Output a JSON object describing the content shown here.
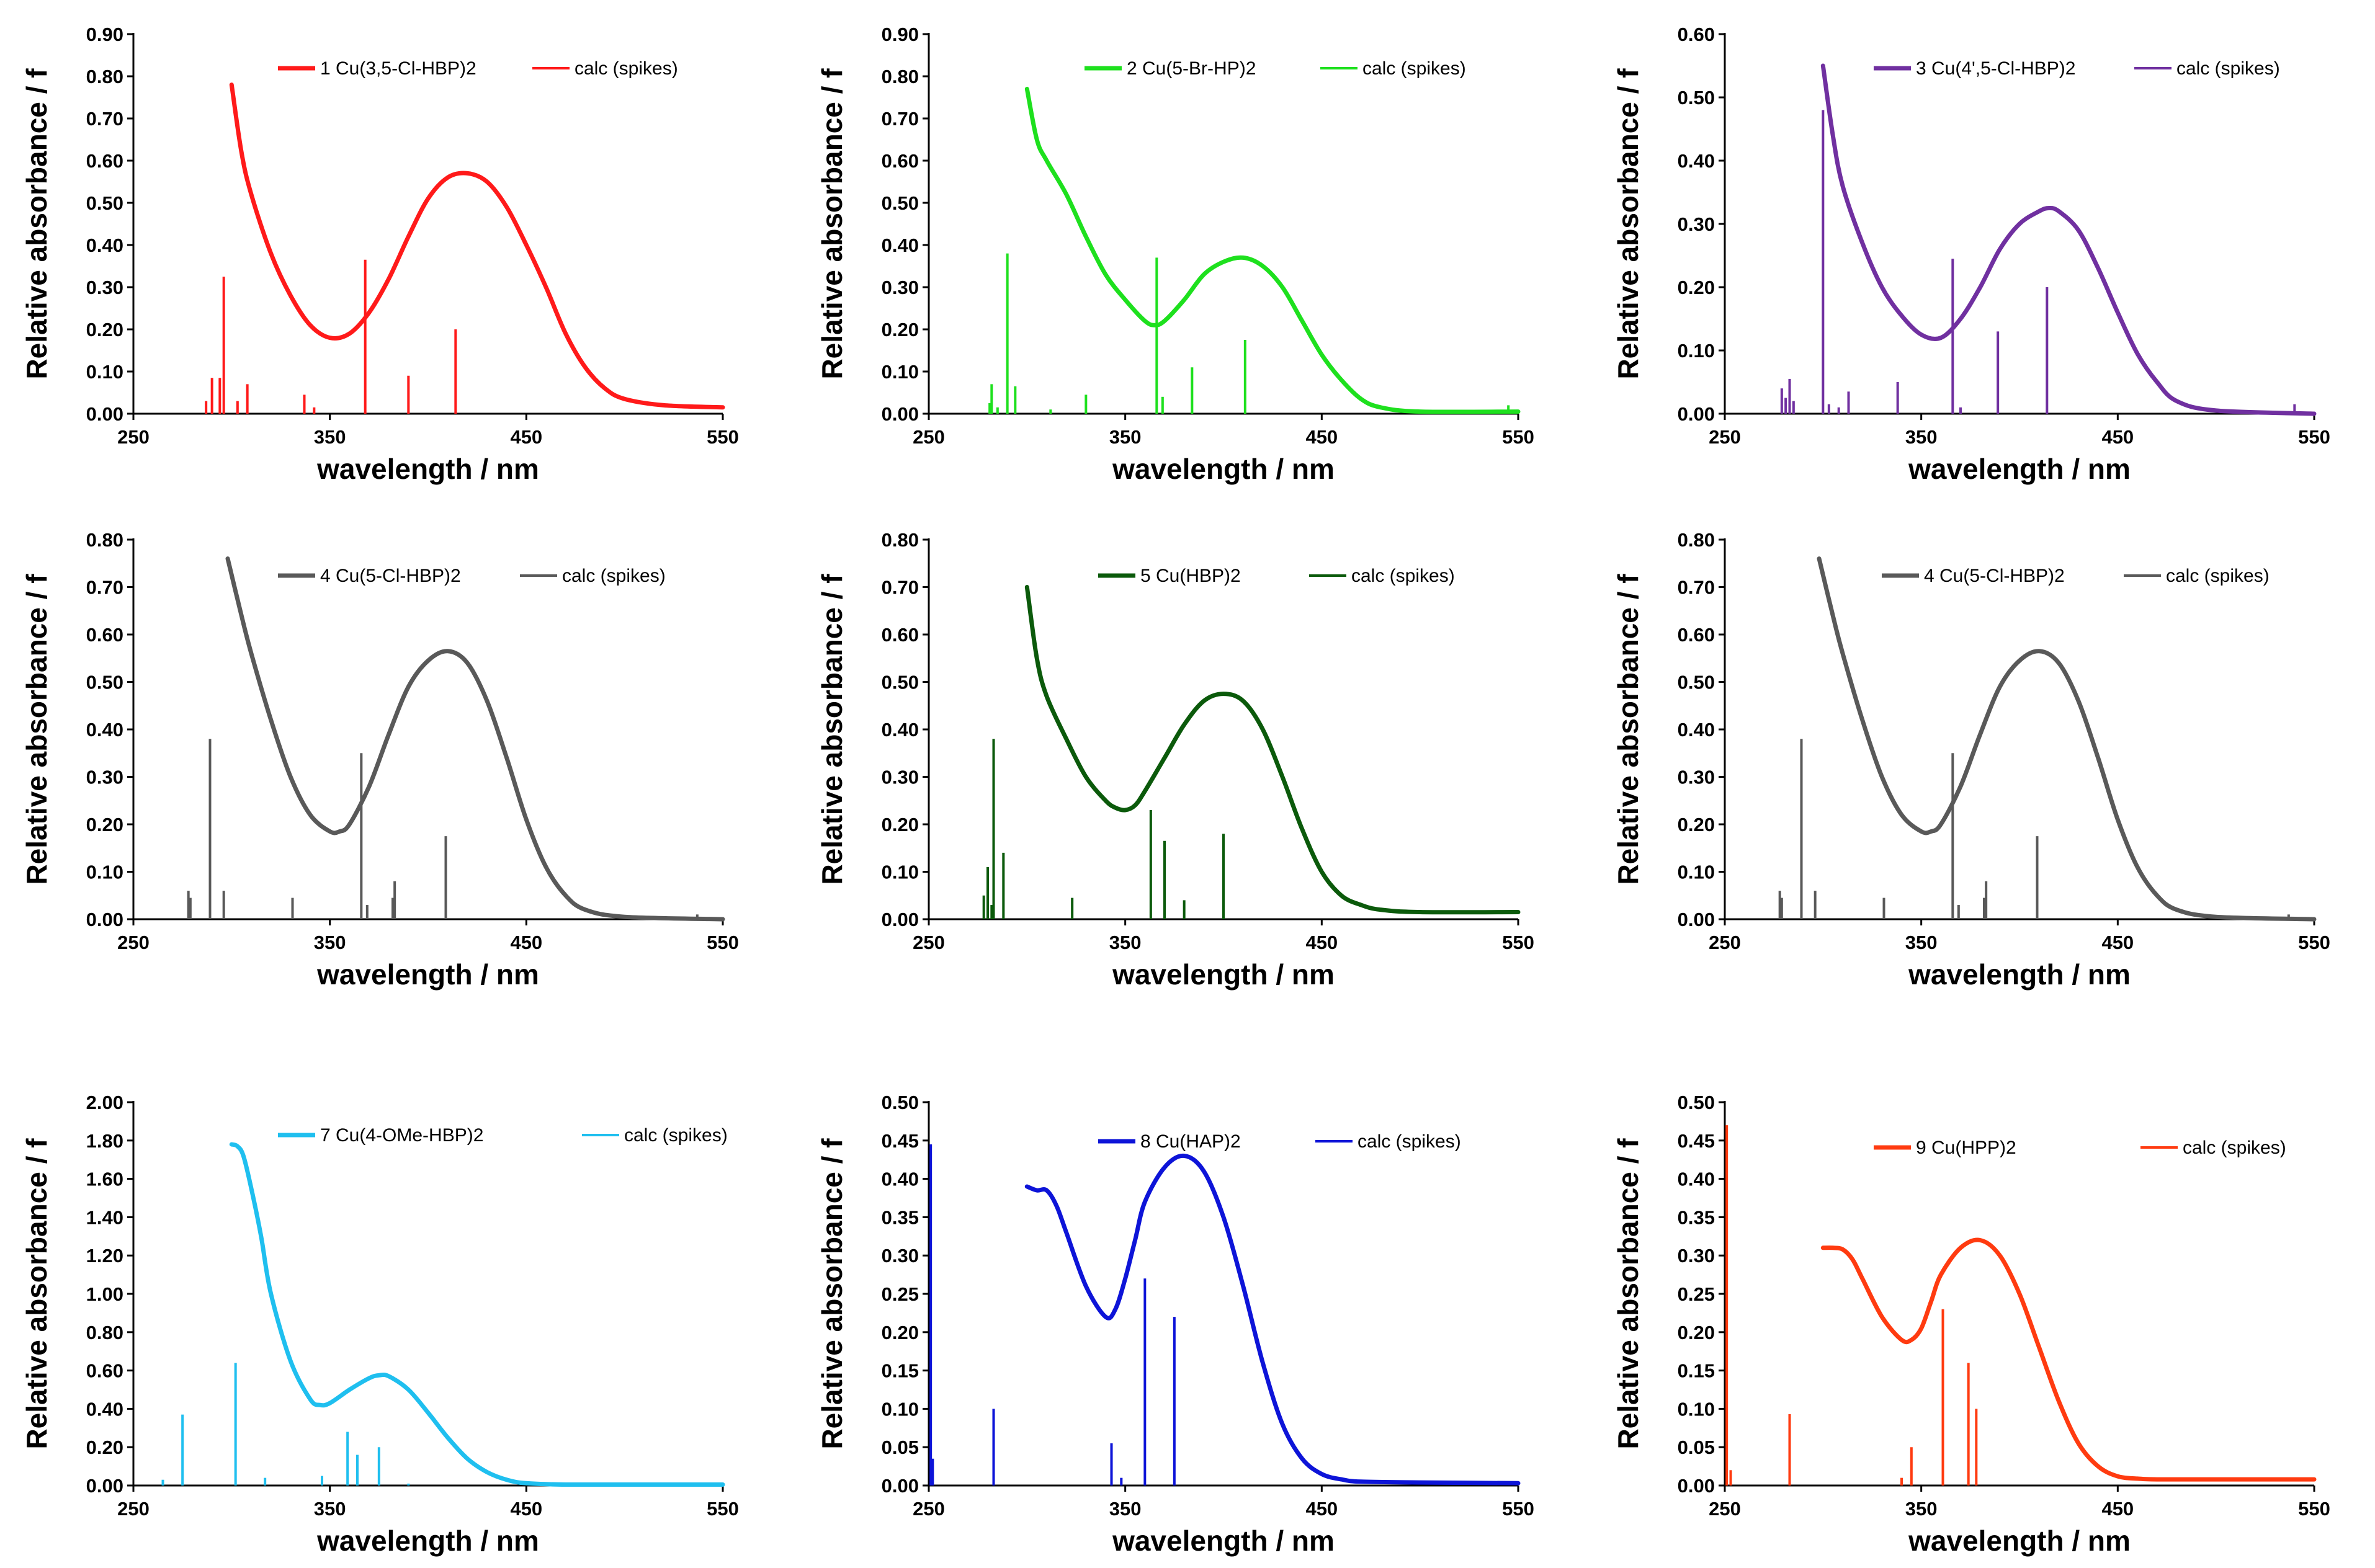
{
  "chart_data": [
    {
      "type": "line",
      "color": "#ff1a1a",
      "legend": [
        "1 Cu(3,5-Cl-HBP)2",
        "calc (spikes)"
      ],
      "xlabel": "wavelength / nm",
      "ylabel": "Relative absorbance / f",
      "xlim": [
        250,
        550
      ],
      "ylim": [
        0,
        0.9
      ],
      "xticks": [
        250,
        350,
        450,
        550
      ],
      "yticks": [
        0,
        0.1,
        0.2,
        0.3,
        0.4,
        0.5,
        0.6,
        0.7,
        0.8,
        0.9
      ],
      "ytick_labels": [
        "0.00",
        "0.10",
        "0.20",
        "0.30",
        "0.40",
        "0.50",
        "0.60",
        "0.70",
        "0.80",
        "0.90"
      ],
      "series": [
        {
          "name": "1 Cu(3,5-Cl-HBP)2",
          "x": [
            300,
            305,
            310,
            320,
            330,
            340,
            350,
            360,
            370,
            380,
            390,
            400,
            410,
            420,
            430,
            440,
            450,
            460,
            470,
            480,
            490,
            500,
            520,
            550
          ],
          "y": [
            0.78,
            0.62,
            0.52,
            0.38,
            0.28,
            0.21,
            0.18,
            0.19,
            0.24,
            0.32,
            0.42,
            0.51,
            0.56,
            0.57,
            0.55,
            0.49,
            0.4,
            0.3,
            0.19,
            0.11,
            0.06,
            0.035,
            0.02,
            0.015
          ]
        },
        {
          "name": "calc (spikes)",
          "x": [
            287,
            290,
            294,
            296,
            303,
            308,
            337,
            342,
            368,
            390,
            414
          ],
          "y": [
            0.03,
            0.085,
            0.085,
            0.325,
            0.03,
            0.07,
            0.045,
            0.015,
            0.365,
            0.09,
            0.2
          ]
        }
      ]
    },
    {
      "type": "line",
      "color": "#1ee01e",
      "legend": [
        "2 Cu(5-Br-HP)2",
        "calc (spikes)"
      ],
      "xlabel": "wavelength / nm",
      "ylabel": "Relative absorbance / f",
      "xlim": [
        250,
        550
      ],
      "ylim": [
        0,
        0.9
      ],
      "xticks": [
        250,
        350,
        450,
        550
      ],
      "yticks": [
        0,
        0.1,
        0.2,
        0.3,
        0.4,
        0.5,
        0.6,
        0.7,
        0.8,
        0.9
      ],
      "ytick_labels": [
        "0.00",
        "0.10",
        "0.20",
        "0.30",
        "0.40",
        "0.50",
        "0.60",
        "0.70",
        "0.80",
        "0.90"
      ],
      "series": [
        {
          "name": "2 Cu(5-Br-HP)2",
          "x": [
            300,
            305,
            310,
            320,
            330,
            340,
            350,
            360,
            365,
            370,
            380,
            390,
            400,
            410,
            420,
            430,
            440,
            450,
            460,
            470,
            480,
            500,
            550
          ],
          "y": [
            0.77,
            0.65,
            0.6,
            0.52,
            0.42,
            0.33,
            0.27,
            0.22,
            0.21,
            0.22,
            0.27,
            0.33,
            0.36,
            0.37,
            0.35,
            0.3,
            0.22,
            0.14,
            0.08,
            0.035,
            0.015,
            0.005,
            0.005
          ]
        },
        {
          "name": "calc (spikes)",
          "x": [
            281,
            282,
            285,
            290,
            294,
            312,
            330,
            366,
            369,
            384,
            411,
            545
          ],
          "y": [
            0.025,
            0.07,
            0.015,
            0.38,
            0.065,
            0.01,
            0.045,
            0.37,
            0.04,
            0.11,
            0.175,
            0.02
          ]
        }
      ]
    },
    {
      "type": "line",
      "color": "#7030a0",
      "legend": [
        "3 Cu(4',5-Cl-HBP)2",
        "calc (spikes)"
      ],
      "xlabel": "wavelength / nm",
      "ylabel": "Relative absorbance / f",
      "xlim": [
        250,
        550
      ],
      "ylim": [
        0,
        0.6
      ],
      "xticks": [
        250,
        350,
        450,
        550
      ],
      "yticks": [
        0,
        0.1,
        0.2,
        0.3,
        0.4,
        0.5,
        0.6
      ],
      "ytick_labels": [
        "0.00",
        "0.10",
        "0.20",
        "0.30",
        "0.40",
        "0.50",
        "0.60"
      ],
      "series": [
        {
          "name": "3 Cu(4',5-Cl-HBP)2",
          "x": [
            300,
            305,
            310,
            320,
            330,
            340,
            350,
            360,
            370,
            380,
            390,
            400,
            410,
            415,
            420,
            430,
            440,
            450,
            460,
            470,
            480,
            500,
            550
          ],
          "y": [
            0.55,
            0.44,
            0.36,
            0.27,
            0.2,
            0.155,
            0.125,
            0.12,
            0.15,
            0.2,
            0.26,
            0.3,
            0.32,
            0.325,
            0.32,
            0.29,
            0.23,
            0.16,
            0.095,
            0.05,
            0.02,
            0.005,
            0.0
          ]
        },
        {
          "name": "calc (spikes)",
          "x": [
            279,
            281,
            283,
            285,
            300,
            303,
            308,
            313,
            338,
            366,
            370,
            389,
            414,
            540
          ],
          "y": [
            0.04,
            0.025,
            0.055,
            0.02,
            0.48,
            0.015,
            0.01,
            0.035,
            0.05,
            0.245,
            0.01,
            0.13,
            0.2,
            0.015
          ]
        }
      ]
    },
    {
      "type": "line",
      "color": "#595959",
      "legend": [
        "4 Cu(5-Cl-HBP)2",
        "calc (spikes)"
      ],
      "xlabel": "wavelength / nm",
      "ylabel": "Relative absorbance / f",
      "xlim": [
        250,
        550
      ],
      "ylim": [
        0,
        0.8
      ],
      "xticks": [
        250,
        350,
        450,
        550
      ],
      "yticks": [
        0,
        0.1,
        0.2,
        0.3,
        0.4,
        0.5,
        0.6,
        0.7,
        0.8
      ],
      "ytick_labels": [
        "0.00",
        "0.10",
        "0.20",
        "0.30",
        "0.40",
        "0.50",
        "0.60",
        "0.70",
        "0.80"
      ],
      "series": [
        {
          "name": "4 Cu(5-Cl-HBP)2",
          "x": [
            298,
            305,
            310,
            320,
            330,
            340,
            350,
            355,
            360,
            370,
            380,
            390,
            400,
            410,
            420,
            430,
            440,
            450,
            460,
            470,
            480,
            500,
            550
          ],
          "y": [
            0.76,
            0.64,
            0.56,
            0.42,
            0.3,
            0.22,
            0.185,
            0.185,
            0.2,
            0.28,
            0.39,
            0.49,
            0.545,
            0.565,
            0.54,
            0.46,
            0.34,
            0.21,
            0.11,
            0.05,
            0.02,
            0.005,
            0.0
          ]
        },
        {
          "name": "calc (spikes)",
          "x": [
            278,
            279,
            289,
            296,
            331,
            366,
            369,
            382,
            383,
            409,
            537
          ],
          "y": [
            0.06,
            0.045,
            0.38,
            0.06,
            0.045,
            0.35,
            0.03,
            0.045,
            0.08,
            0.175,
            0.01
          ]
        }
      ]
    },
    {
      "type": "line",
      "color": "#0b5a0b",
      "legend": [
        "5 Cu(HBP)2",
        "calc (spikes)"
      ],
      "xlabel": "wavelength / nm",
      "ylabel": "Relative absorbance / f",
      "xlim": [
        250,
        550
      ],
      "ylim": [
        0,
        0.8
      ],
      "xticks": [
        250,
        350,
        450,
        550
      ],
      "yticks": [
        0,
        0.1,
        0.2,
        0.3,
        0.4,
        0.5,
        0.6,
        0.7,
        0.8
      ],
      "ytick_labels": [
        "0.00",
        "0.10",
        "0.20",
        "0.30",
        "0.40",
        "0.50",
        "0.60",
        "0.70",
        "0.80"
      ],
      "series": [
        {
          "name": "5 Cu(HBP)2",
          "x": [
            300,
            305,
            310,
            320,
            330,
            340,
            345,
            350,
            355,
            360,
            370,
            380,
            390,
            400,
            410,
            420,
            430,
            440,
            450,
            460,
            470,
            480,
            500,
            550
          ],
          "y": [
            0.7,
            0.55,
            0.47,
            0.38,
            0.3,
            0.25,
            0.235,
            0.23,
            0.24,
            0.27,
            0.34,
            0.41,
            0.46,
            0.475,
            0.46,
            0.4,
            0.3,
            0.19,
            0.1,
            0.05,
            0.03,
            0.02,
            0.015,
            0.015
          ]
        },
        {
          "name": "calc (spikes)",
          "x": [
            278,
            280,
            282,
            283,
            288,
            323,
            363,
            370,
            380,
            400
          ],
          "y": [
            0.05,
            0.11,
            0.03,
            0.38,
            0.14,
            0.045,
            0.23,
            0.165,
            0.04,
            0.18
          ]
        }
      ]
    },
    {
      "type": "line",
      "color": "#595959",
      "legend": [
        "4 Cu(5-Cl-HBP)2",
        "calc (spikes)"
      ],
      "xlabel": "wavelength / nm",
      "ylabel": "Relative absorbance / f",
      "xlim": [
        250,
        550
      ],
      "ylim": [
        0,
        0.8
      ],
      "xticks": [
        250,
        350,
        450,
        550
      ],
      "yticks": [
        0,
        0.1,
        0.2,
        0.3,
        0.4,
        0.5,
        0.6,
        0.7,
        0.8
      ],
      "ytick_labels": [
        "0.00",
        "0.10",
        "0.20",
        "0.30",
        "0.40",
        "0.50",
        "0.60",
        "0.70",
        "0.80"
      ],
      "series": [
        {
          "name": "4 Cu(5-Cl-HBP)2",
          "x": [
            298,
            305,
            310,
            320,
            330,
            340,
            350,
            355,
            360,
            370,
            380,
            390,
            400,
            410,
            420,
            430,
            440,
            450,
            460,
            470,
            480,
            500,
            550
          ],
          "y": [
            0.76,
            0.64,
            0.56,
            0.42,
            0.3,
            0.22,
            0.185,
            0.185,
            0.2,
            0.28,
            0.39,
            0.49,
            0.545,
            0.565,
            0.54,
            0.46,
            0.34,
            0.21,
            0.11,
            0.05,
            0.02,
            0.005,
            0.0
          ]
        },
        {
          "name": "calc (spikes)",
          "x": [
            278,
            279,
            289,
            296,
            331,
            366,
            369,
            382,
            383,
            409,
            537
          ],
          "y": [
            0.06,
            0.045,
            0.38,
            0.06,
            0.045,
            0.35,
            0.03,
            0.045,
            0.08,
            0.175,
            0.01
          ]
        }
      ]
    },
    {
      "type": "line",
      "color": "#1fbfef",
      "legend": [
        "7 Cu(4-OMe-HBP)2",
        "calc (spikes)"
      ],
      "xlabel": "wavelength / nm",
      "ylabel": "Relative absorbance / f",
      "xlim": [
        250,
        550
      ],
      "ylim": [
        0,
        2.0
      ],
      "xticks": [
        250,
        350,
        450,
        550
      ],
      "yticks": [
        0,
        0.2,
        0.4,
        0.6,
        0.8,
        1.0,
        1.2,
        1.4,
        1.6,
        1.8,
        2.0
      ],
      "ytick_labels": [
        "0.00",
        "0.20",
        "0.40",
        "0.60",
        "0.80",
        "1.00",
        "1.20",
        "1.40",
        "1.60",
        "1.80",
        "2.00"
      ],
      "series": [
        {
          "name": "7 Cu(4-OMe-HBP)2",
          "x": [
            300,
            303,
            306,
            310,
            315,
            320,
            330,
            340,
            345,
            350,
            360,
            370,
            375,
            380,
            390,
            400,
            410,
            420,
            430,
            440,
            450,
            470,
            500,
            550
          ],
          "y": [
            1.78,
            1.77,
            1.72,
            1.55,
            1.3,
            1.0,
            0.65,
            0.45,
            0.42,
            0.43,
            0.5,
            0.56,
            0.575,
            0.57,
            0.5,
            0.38,
            0.25,
            0.14,
            0.07,
            0.03,
            0.012,
            0.005,
            0.005,
            0.005
          ]
        },
        {
          "name": "calc (spikes)",
          "x": [
            265,
            275,
            302,
            317,
            346,
            359,
            364,
            375,
            390
          ],
          "y": [
            0.03,
            0.37,
            0.64,
            0.04,
            0.05,
            0.28,
            0.16,
            0.2,
            0.01
          ]
        }
      ]
    },
    {
      "type": "line",
      "color": "#0d14d8",
      "legend": [
        "8 Cu(HAP)2",
        "calc (spikes)"
      ],
      "xlabel": "wavelength / nm",
      "ylabel": "Relative absorbance / f",
      "xlim": [
        250,
        550
      ],
      "ylim": [
        0,
        0.5
      ],
      "xticks": [
        250,
        350,
        450,
        550
      ],
      "yticks": [
        0,
        0.05,
        0.1,
        0.15,
        0.2,
        0.25,
        0.3,
        0.35,
        0.4,
        0.45,
        0.5
      ],
      "ytick_labels": [
        "0.00",
        "0.05",
        "0.10",
        "0.15",
        "0.20",
        "0.25",
        "0.30",
        "0.35",
        "0.40",
        "0.45",
        "0.50"
      ],
      "series": [
        {
          "name": "8 Cu(HAP)2",
          "x": [
            300,
            305,
            310,
            315,
            320,
            330,
            340,
            345,
            350,
            355,
            360,
            370,
            380,
            390,
            400,
            410,
            420,
            430,
            440,
            450,
            460,
            470,
            500,
            550
          ],
          "y": [
            0.39,
            0.385,
            0.385,
            0.365,
            0.33,
            0.26,
            0.22,
            0.23,
            0.27,
            0.32,
            0.37,
            0.415,
            0.43,
            0.41,
            0.35,
            0.26,
            0.16,
            0.08,
            0.035,
            0.015,
            0.008,
            0.005,
            0.004,
            0.003
          ]
        },
        {
          "name": "calc (spikes)",
          "x": [
            251,
            252,
            283,
            343,
            348,
            360,
            375
          ],
          "y": [
            0.445,
            0.035,
            0.1,
            0.055,
            0.01,
            0.27,
            0.22
          ]
        }
      ]
    },
    {
      "type": "line",
      "color": "#ff3b10",
      "legend": [
        "9 Cu(HPP)2",
        "calc (spikes)"
      ],
      "xlabel": "wavelength / nm",
      "ylabel": "Relative absorbance / f",
      "xlim": [
        250,
        550
      ],
      "ylim": [
        0,
        0.5
      ],
      "xticks": [
        250,
        350,
        450,
        550
      ],
      "yticks": [
        0,
        0.05,
        0.1,
        0.15,
        0.2,
        0.25,
        0.3,
        0.35,
        0.4,
        0.45,
        0.5
      ],
      "ytick_labels": [
        "0.00",
        "0.05",
        "0.10",
        "0.15",
        "0.20",
        "0.25",
        "0.30",
        "0.35",
        "0.40",
        "0.45",
        "0.50"
      ],
      "series": [
        {
          "name": "9 Cu(HPP)2",
          "x": [
            300,
            305,
            310,
            315,
            320,
            330,
            340,
            345,
            350,
            355,
            360,
            370,
            380,
            390,
            400,
            410,
            420,
            430,
            440,
            450,
            460,
            470,
            500,
            550
          ],
          "y": [
            0.31,
            0.31,
            0.308,
            0.295,
            0.27,
            0.22,
            0.19,
            0.19,
            0.205,
            0.24,
            0.275,
            0.31,
            0.32,
            0.3,
            0.25,
            0.18,
            0.11,
            0.055,
            0.025,
            0.012,
            0.009,
            0.008,
            0.008,
            0.008
          ]
        },
        {
          "name": "calc (spikes)",
          "x": [
            251,
            253,
            283,
            340,
            345,
            361,
            374,
            378
          ],
          "y": [
            0.47,
            0.02,
            0.093,
            0.01,
            0.05,
            0.23,
            0.16,
            0.1
          ]
        }
      ]
    }
  ]
}
